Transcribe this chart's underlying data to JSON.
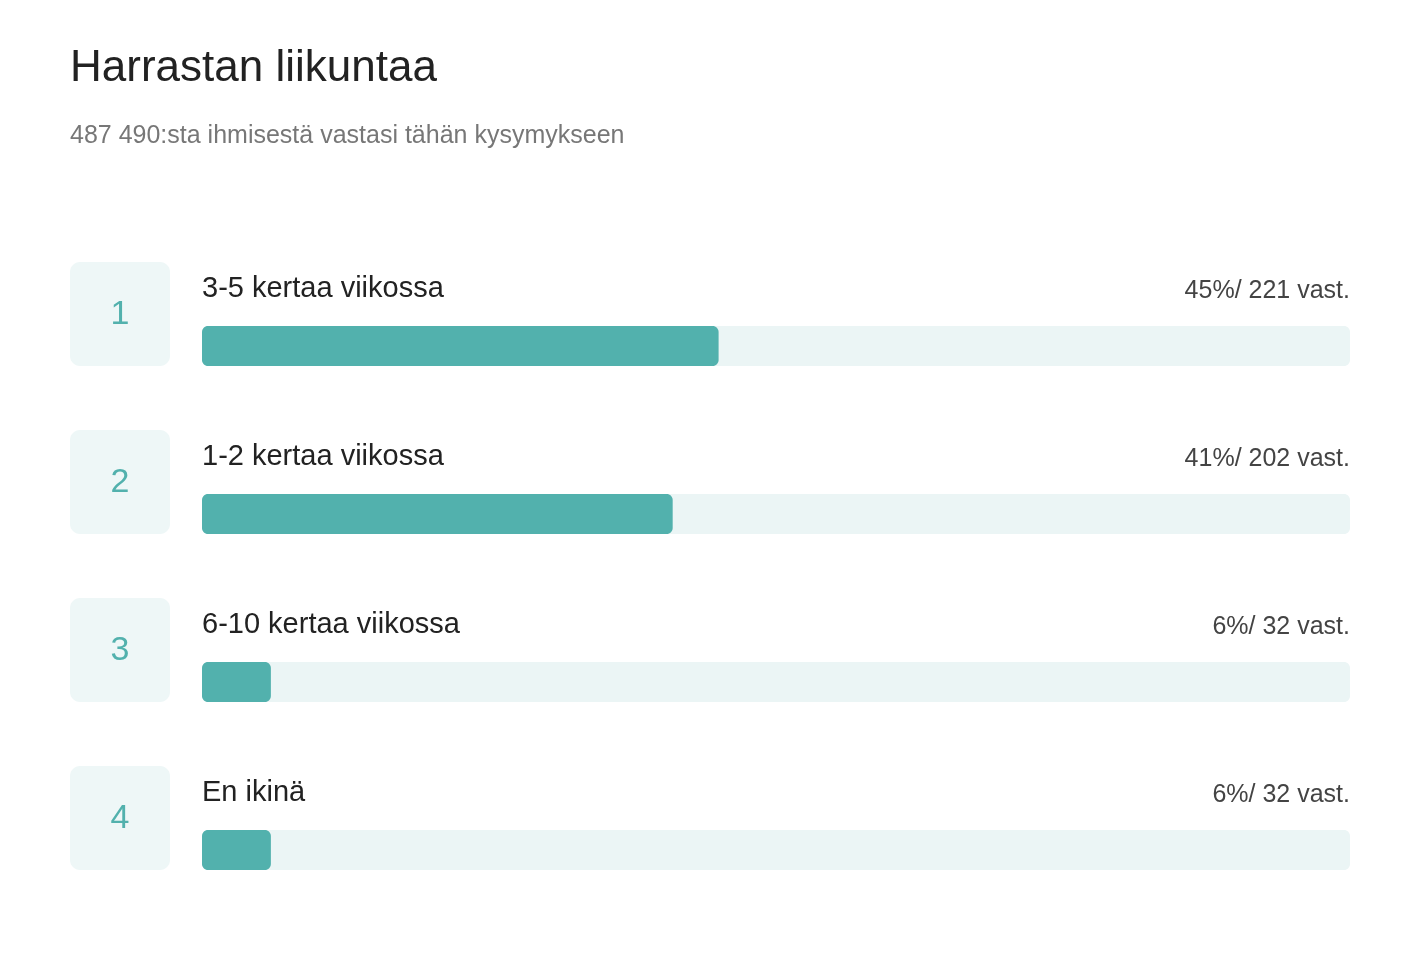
{
  "chart_data": {
    "type": "bar",
    "orientation": "horizontal",
    "title": "Harrastan liikuntaa",
    "subtitle": "487 490:sta ihmisestä vastasi tähän kysymykseen",
    "categories": [
      "3-5 kertaa viikossa",
      "1-2 kertaa viikossa",
      "6-10 kertaa viikossa",
      "En ikinä"
    ],
    "values": [
      45,
      41,
      6,
      6
    ],
    "value_labels": [
      "45%/ 221 vast.",
      "41%/ 202 vast.",
      "6%/ 32 vast.",
      "6%/ 32 vast."
    ],
    "annotations": [
      "1",
      "2",
      "3",
      "4"
    ],
    "color": "#52b1ad",
    "xlim": [
      0,
      100
    ]
  }
}
